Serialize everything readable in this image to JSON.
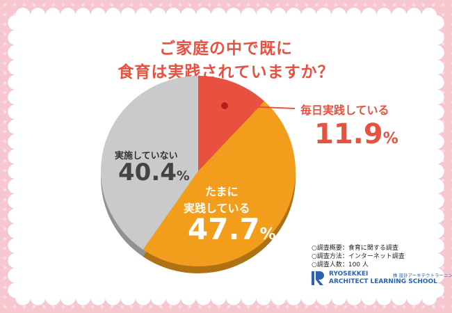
{
  "title_line1": "ご家庭の中で既に",
  "title_line2": "食育は実践されていますか？",
  "chart_data": {
    "type": "pie",
    "slices": [
      {
        "label": "毎日実践している",
        "value": 11.9,
        "display": "11.9",
        "color": "#e8503f"
      },
      {
        "label_line1": "たまに",
        "label_line2": "実践している",
        "value": 47.7,
        "display": "47.7",
        "color": "#f29e1c"
      },
      {
        "label": "実施していない",
        "value": 40.4,
        "display": "40.4",
        "color": "#c9cacb"
      }
    ],
    "percent_sign": "%"
  },
  "survey": {
    "line1": "○調査概要：食育に関する調査",
    "line2": "○調査方法：インターネット調査",
    "line3": "○調査人数：100 人"
  },
  "logo": {
    "name": "RYOSEKKEI",
    "jp": "株 設計アーキテクトラーニング",
    "school": "ARCHITECT LEARNING SCHOOL",
    "color": "#2a63b3"
  }
}
